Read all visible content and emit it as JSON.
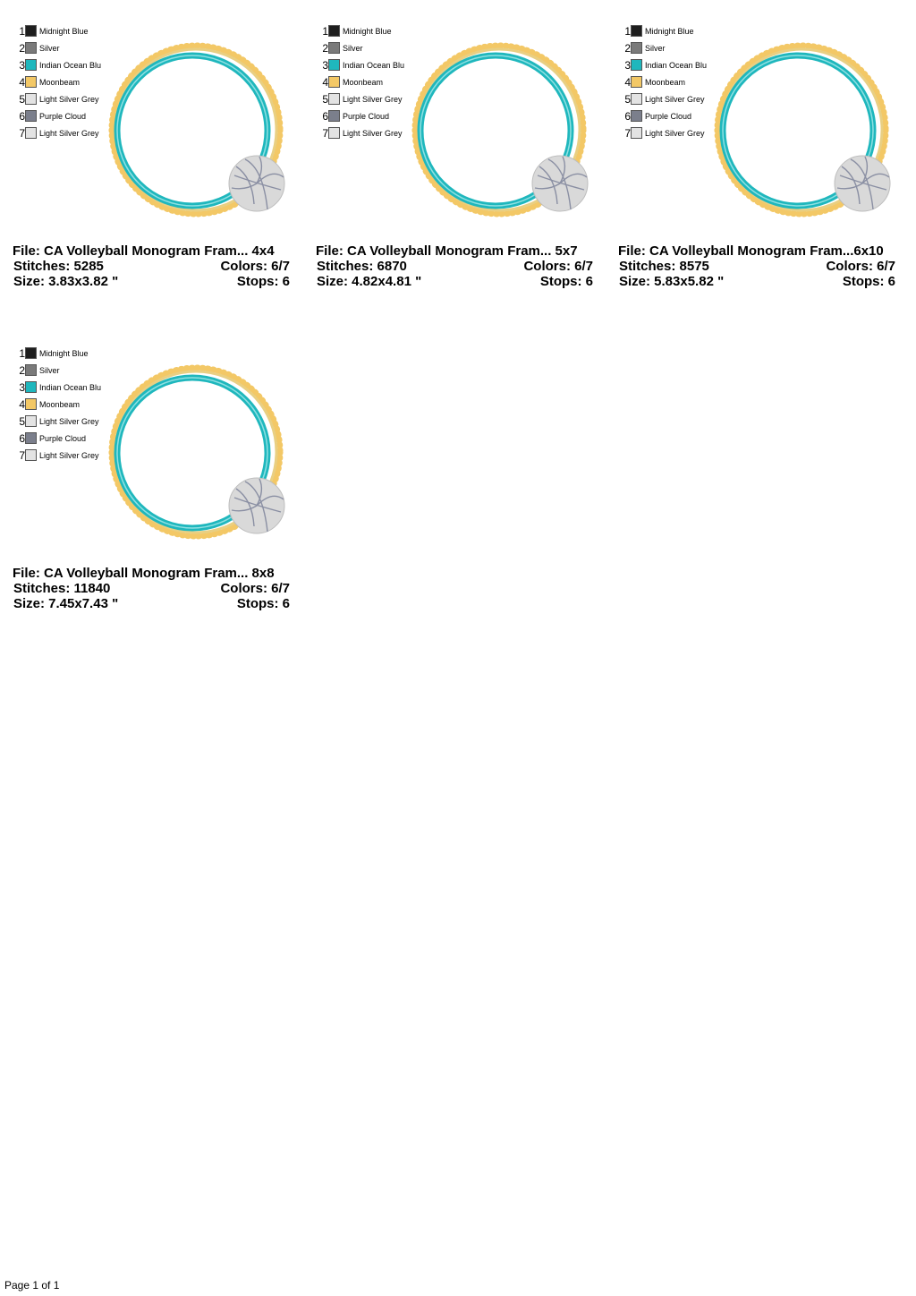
{
  "designs": [
    {
      "threads": [
        {
          "number": 1,
          "name": "Midnight Blue",
          "color": "#1e1e1e"
        },
        {
          "number": 2,
          "name": "Silver",
          "color": "#7a7a7a"
        },
        {
          "number": 3,
          "name": "Indian Ocean Blu",
          "color": "#1fb7bd"
        },
        {
          "number": 4,
          "name": "Moonbeam",
          "color": "#f3c866"
        },
        {
          "number": 5,
          "name": "Light Silver Grey",
          "color": "#e3e3e3"
        },
        {
          "number": 6,
          "name": "Purple Cloud",
          "color": "#7b7f8c"
        },
        {
          "number": 7,
          "name": "Light Silver Grey",
          "color": "#e3e3e3"
        }
      ],
      "file": "File: CA Volleyball Monogram Fram... 4x4",
      "stitches": "Stitches: 5285",
      "colors": "Colors: 6/7",
      "size": "Size: 3.83x3.82 \"",
      "stops": "Stops: 6"
    },
    {
      "threads": [
        {
          "number": 1,
          "name": "Midnight Blue",
          "color": "#1e1e1e"
        },
        {
          "number": 2,
          "name": "Silver",
          "color": "#7a7a7a"
        },
        {
          "number": 3,
          "name": "Indian Ocean Blu",
          "color": "#1fb7bd"
        },
        {
          "number": 4,
          "name": "Moonbeam",
          "color": "#f3c866"
        },
        {
          "number": 5,
          "name": "Light Silver Grey",
          "color": "#e3e3e3"
        },
        {
          "number": 6,
          "name": "Purple Cloud",
          "color": "#7b7f8c"
        },
        {
          "number": 7,
          "name": "Light Silver Grey",
          "color": "#e3e3e3"
        }
      ],
      "file": "File: CA Volleyball Monogram Fram... 5x7",
      "stitches": "Stitches: 6870",
      "colors": "Colors: 6/7",
      "size": "Size: 4.82x4.81 \"",
      "stops": "Stops: 6"
    },
    {
      "threads": [
        {
          "number": 1,
          "name": "Midnight Blue",
          "color": "#1e1e1e"
        },
        {
          "number": 2,
          "name": "Silver",
          "color": "#7a7a7a"
        },
        {
          "number": 3,
          "name": "Indian Ocean Blu",
          "color": "#1fb7bd"
        },
        {
          "number": 4,
          "name": "Moonbeam",
          "color": "#f3c866"
        },
        {
          "number": 5,
          "name": "Light Silver Grey",
          "color": "#e3e3e3"
        },
        {
          "number": 6,
          "name": "Purple Cloud",
          "color": "#7b7f8c"
        },
        {
          "number": 7,
          "name": "Light Silver Grey",
          "color": "#e3e3e3"
        }
      ],
      "file": "File: CA Volleyball Monogram Fram...6x10",
      "stitches": "Stitches: 8575",
      "colors": "Colors: 6/7",
      "size": "Size: 5.83x5.82 \"",
      "stops": "Stops: 6"
    },
    {
      "threads": [
        {
          "number": 1,
          "name": "Midnight Blue",
          "color": "#1e1e1e"
        },
        {
          "number": 2,
          "name": "Silver",
          "color": "#7a7a7a"
        },
        {
          "number": 3,
          "name": "Indian Ocean Blu",
          "color": "#1fb7bd"
        },
        {
          "number": 4,
          "name": "Moonbeam",
          "color": "#f3c866"
        },
        {
          "number": 5,
          "name": "Light Silver Grey",
          "color": "#e3e3e3"
        },
        {
          "number": 6,
          "name": "Purple Cloud",
          "color": "#7b7f8c"
        },
        {
          "number": 7,
          "name": "Light Silver Grey",
          "color": "#e3e3e3"
        }
      ],
      "file": "File: CA Volleyball Monogram Fram... 8x8",
      "stitches": "Stitches: 11840",
      "colors": "Colors: 6/7",
      "size": "Size: 7.45x7.43 \"",
      "stops": "Stops: 6"
    }
  ],
  "footer": "Page 1 of 1"
}
